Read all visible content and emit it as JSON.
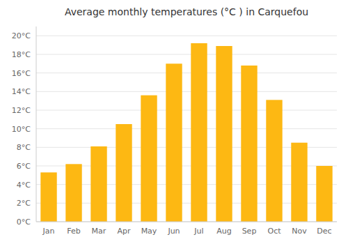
{
  "chart_data": {
    "type": "bar",
    "title": "Average monthly temperatures (°C ) in Carquefou",
    "categories": [
      "Jan",
      "Feb",
      "Mar",
      "Apr",
      "May",
      "Jun",
      "Jul",
      "Aug",
      "Sep",
      "Oct",
      "Nov",
      "Dec"
    ],
    "values": [
      5.3,
      6.2,
      8.1,
      10.5,
      13.6,
      17.0,
      19.2,
      18.9,
      16.8,
      13.1,
      8.5,
      6.0
    ],
    "color": "#FDB813",
    "ylim": [
      0,
      21
    ],
    "yticks": [
      {
        "value": 0,
        "label": "0°C"
      },
      {
        "value": 2,
        "label": "2°C"
      },
      {
        "value": 4,
        "label": "4°C"
      },
      {
        "value": 6,
        "label": "6°C"
      },
      {
        "value": 8,
        "label": "8°C"
      },
      {
        "value": 10,
        "label": "10°C"
      },
      {
        "value": 12,
        "label": "12°C"
      },
      {
        "value": 14,
        "label": "14°C"
      },
      {
        "value": 16,
        "label": "16°C"
      },
      {
        "value": 18,
        "label": "18°C"
      },
      {
        "value": 20,
        "label": "20°C"
      }
    ],
    "grid": true
  }
}
